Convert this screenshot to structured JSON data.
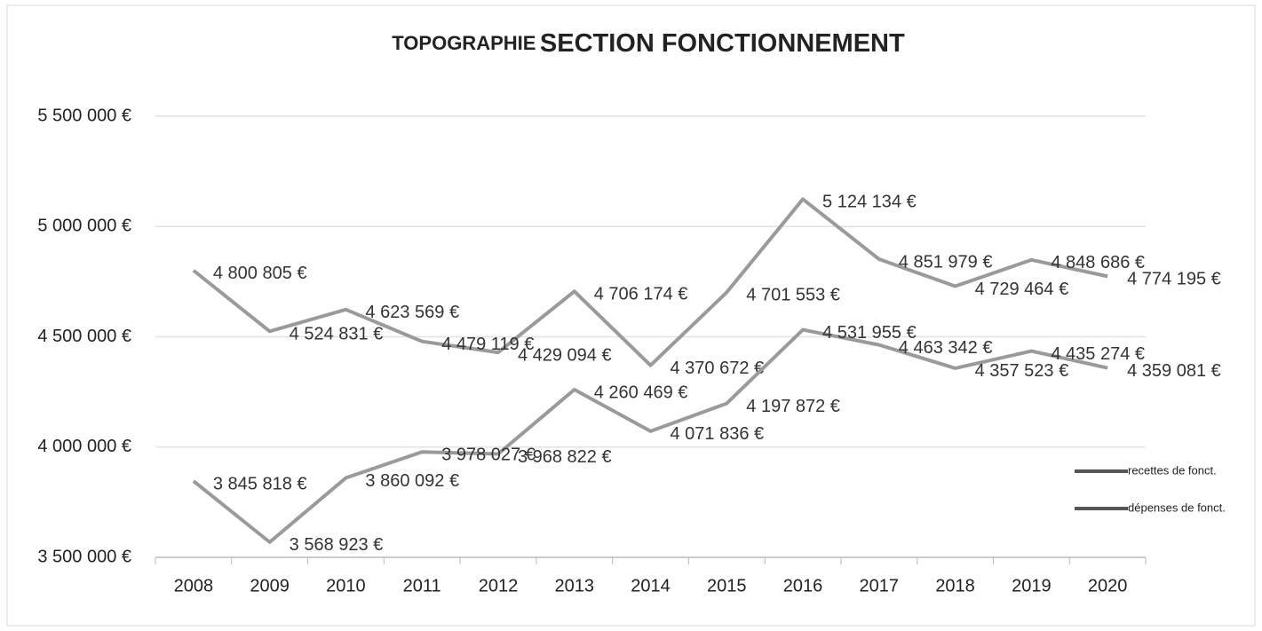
{
  "chart_data": {
    "type": "line",
    "title": [
      "TOPOGRAPHIE",
      "SECTION FONCTIONNEMENT"
    ],
    "categories": [
      "2008",
      "2009",
      "2010",
      "2011",
      "2012",
      "2013",
      "2014",
      "2015",
      "2016",
      "2017",
      "2018",
      "2019",
      "2020"
    ],
    "series": [
      {
        "name": "recettes de fonct.",
        "color": "#9a9a9a",
        "values": [
          4800805,
          4524831,
          4623569,
          4479119,
          4429094,
          4706174,
          4370672,
          4701553,
          5124134,
          4851979,
          4729464,
          4848686,
          4774195
        ],
        "value_labels": [
          "4 800 805 €",
          "4 524 831 €",
          "4 623 569 €",
          "4 479 119 €",
          "4 429 094 €",
          "4 706 174 €",
          "4 370 672 €",
          "4 701 553 €",
          "5 124 134 €",
          "4 851 979 €",
          "4 729 464 €",
          "4 848 686 €",
          "4 774 195 €"
        ]
      },
      {
        "name": "dépenses de fonct.",
        "color": "#9a9a9a",
        "values": [
          3845818,
          3568923,
          3860092,
          3978027,
          3968822,
          4260469,
          4071836,
          4197872,
          4531955,
          4463342,
          4357523,
          4435274,
          4359081
        ],
        "value_labels": [
          "3 845 818 €",
          "3 568 923 €",
          "3 860 092 €",
          "3 978 027 €",
          "3 968 822 €",
          "4 260 469 €",
          "4 071 836 €",
          "4 197 872 €",
          "4 531 955 €",
          "4 463 342 €",
          "4 357 523 €",
          "4 435 274 €",
          "4 359 081 €"
        ]
      }
    ],
    "ylim": [
      3500000,
      5500000
    ],
    "yticks": [
      {
        "value": 3500000,
        "label": "3 500 000 €"
      },
      {
        "value": 4000000,
        "label": "4 000 000 €"
      },
      {
        "value": 4500000,
        "label": "4 500 000 €"
      },
      {
        "value": 5000000,
        "label": "5 000 000 €"
      },
      {
        "value": 5500000,
        "label": "5 500 000 €"
      }
    ],
    "grid": true,
    "legend": "right"
  }
}
